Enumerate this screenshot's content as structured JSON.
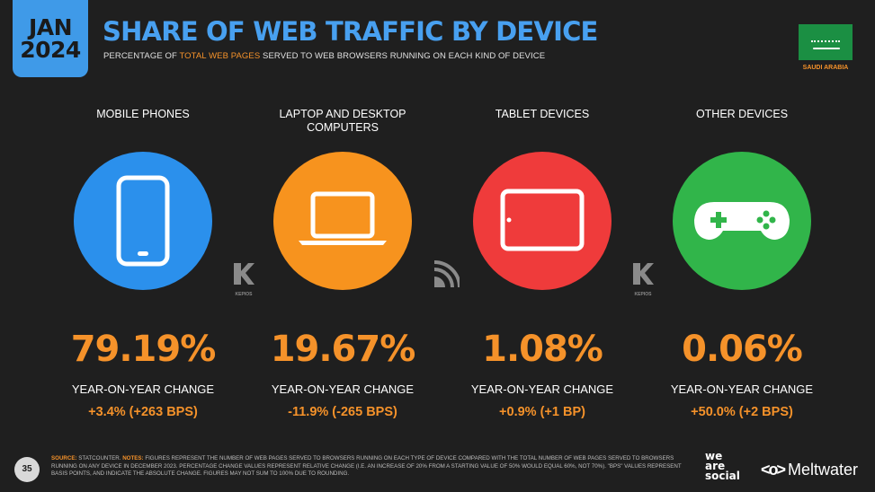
{
  "header": {
    "date_month": "JAN",
    "date_year": "2024",
    "title": "SHARE OF WEB TRAFFIC BY DEVICE",
    "subtitle_pre": "PERCENTAGE OF ",
    "subtitle_highlight": "TOTAL WEB PAGES",
    "subtitle_post": " SERVED TO WEB BROWSERS RUNNING ON EACH KIND OF DEVICE",
    "country": "SAUDI ARABIA"
  },
  "devices": [
    {
      "label": "MOBILE PHONES",
      "share": "79.19%",
      "yoy_label": "YEAR-ON-YEAR CHANGE",
      "yoy_value": "+3.4% (+263 BPS)",
      "color": "#2b90ec",
      "icon": "mobile-phone-icon"
    },
    {
      "label": "LAPTOP AND DESKTOP COMPUTERS",
      "share": "19.67%",
      "yoy_label": "YEAR-ON-YEAR CHANGE",
      "yoy_value": "-11.9% (-265 BPS)",
      "color": "#f7931e",
      "icon": "laptop-icon"
    },
    {
      "label": "TABLET DEVICES",
      "share": "1.08%",
      "yoy_label": "YEAR-ON-YEAR CHANGE",
      "yoy_value": "+0.9% (+1 BP)",
      "color": "#ef3b3b",
      "icon": "tablet-icon"
    },
    {
      "label": "OTHER DEVICES",
      "share": "0.06%",
      "yoy_label": "YEAR-ON-YEAR CHANGE",
      "yoy_value": "+50.0% (+2 BPS)",
      "color": "#31b54a",
      "icon": "game-controller-icon"
    }
  ],
  "source_logos": [
    {
      "icon": "kepios-logo-icon",
      "text": "KEPIOS"
    },
    {
      "icon": "datareportal-logo-icon",
      "text": ""
    },
    {
      "icon": "kepios-logo-icon",
      "text": "KEPIOS"
    }
  ],
  "footer": {
    "page_number": "35",
    "source_label": "SOURCE:",
    "source_text": " STATCOUNTER. ",
    "notes_label": "NOTES:",
    "notes_text": " FIGURES REPRESENT THE NUMBER OF WEB PAGES SERVED TO BROWSERS RUNNING ON EACH TYPE OF DEVICE COMPARED WITH THE TOTAL NUMBER OF WEB PAGES SERVED TO BROWSERS RUNNING ON ANY DEVICE IN DECEMBER 2023. PERCENTAGE CHANGE VALUES REPRESENT RELATIVE CHANGE (I.E. AN INCREASE OF 20% FROM A STARTING VALUE OF 50% WOULD EQUAL 60%, NOT 70%). \"BPS\" VALUES REPRESENT BASIS POINTS, AND INDICATE THE ABSOLUTE CHANGE. FIGURES MAY NOT SUM TO 100% DUE TO ROUNDING.",
    "brand_we": "we",
    "brand_are": "are",
    "brand_social": "social",
    "brand_meltwater": "Meltwater"
  }
}
